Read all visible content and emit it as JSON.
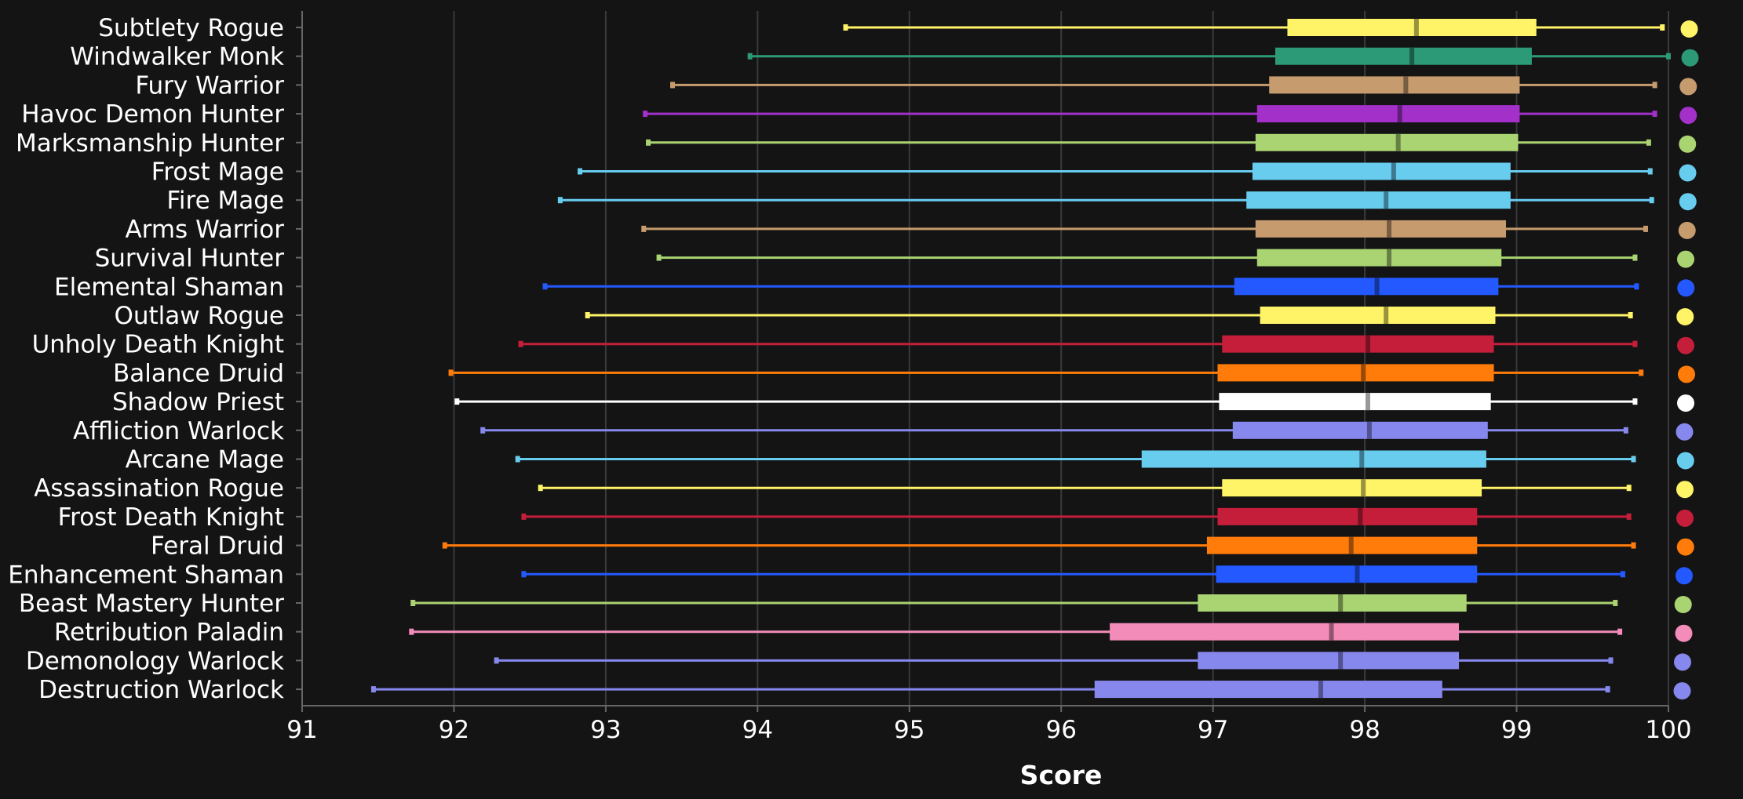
{
  "chart_data": {
    "type": "boxplot",
    "title": "",
    "xlabel": "Score",
    "ylabel": "",
    "xlim": [
      91,
      100
    ],
    "xticks": [
      91,
      92,
      93,
      94,
      95,
      96,
      97,
      98,
      99,
      100
    ],
    "grid": "vertical",
    "legend": "none",
    "series": [
      {
        "name": "Subtlety Rogue",
        "color": "#fff468",
        "min": 94.58,
        "q1": 97.49,
        "median": 98.34,
        "q3": 99.13,
        "max": 99.96
      },
      {
        "name": "Windwalker Monk",
        "color": "#2c9a76",
        "min": 93.95,
        "q1": 97.41,
        "median": 98.31,
        "q3": 99.1,
        "max": 100.0
      },
      {
        "name": "Fury Warrior",
        "color": "#c69b6d",
        "min": 93.44,
        "q1": 97.37,
        "median": 98.27,
        "q3": 99.02,
        "max": 99.91
      },
      {
        "name": "Havoc Demon Hunter",
        "color": "#a330c9",
        "min": 93.26,
        "q1": 97.29,
        "median": 98.23,
        "q3": 99.02,
        "max": 99.91
      },
      {
        "name": "Marksmanship Hunter",
        "color": "#aad372",
        "min": 93.28,
        "q1": 97.28,
        "median": 98.22,
        "q3": 99.01,
        "max": 99.87
      },
      {
        "name": "Frost Mage",
        "color": "#68ccef",
        "min": 92.83,
        "q1": 97.26,
        "median": 98.19,
        "q3": 98.96,
        "max": 99.88
      },
      {
        "name": "Fire Mage",
        "color": "#68ccef",
        "min": 92.7,
        "q1": 97.22,
        "median": 98.14,
        "q3": 98.96,
        "max": 99.89
      },
      {
        "name": "Arms Warrior",
        "color": "#c69b6d",
        "min": 93.25,
        "q1": 97.28,
        "median": 98.16,
        "q3": 98.93,
        "max": 99.85
      },
      {
        "name": "Survival Hunter",
        "color": "#aad372",
        "min": 93.35,
        "q1": 97.29,
        "median": 98.16,
        "q3": 98.9,
        "max": 99.78
      },
      {
        "name": "Elemental Shaman",
        "color": "#2359ff",
        "min": 92.6,
        "q1": 97.14,
        "median": 98.08,
        "q3": 98.88,
        "max": 99.79
      },
      {
        "name": "Outlaw Rogue",
        "color": "#fff468",
        "min": 92.88,
        "q1": 97.31,
        "median": 98.14,
        "q3": 98.86,
        "max": 99.75
      },
      {
        "name": "Unholy Death Knight",
        "color": "#c41e3b",
        "min": 92.44,
        "q1": 97.06,
        "median": 98.02,
        "q3": 98.85,
        "max": 99.78
      },
      {
        "name": "Balance Druid",
        "color": "#ff7c0a",
        "min": 91.98,
        "q1": 97.03,
        "median": 97.99,
        "q3": 98.85,
        "max": 99.82
      },
      {
        "name": "Shadow Priest",
        "color": "#ffffff",
        "min": 92.02,
        "q1": 97.04,
        "median": 98.02,
        "q3": 98.83,
        "max": 99.78
      },
      {
        "name": "Affliction Warlock",
        "color": "#8788ee",
        "min": 92.19,
        "q1": 97.13,
        "median": 98.03,
        "q3": 98.81,
        "max": 99.72
      },
      {
        "name": "Arcane Mage",
        "color": "#68ccef",
        "min": 92.42,
        "q1": 96.53,
        "median": 97.98,
        "q3": 98.8,
        "max": 99.77
      },
      {
        "name": "Assassination Rogue",
        "color": "#fff468",
        "min": 92.57,
        "q1": 97.06,
        "median": 97.99,
        "q3": 98.77,
        "max": 99.74
      },
      {
        "name": "Frost Death Knight",
        "color": "#c41e3b",
        "min": 92.46,
        "q1": 97.03,
        "median": 97.97,
        "q3": 98.74,
        "max": 99.74
      },
      {
        "name": "Feral Druid",
        "color": "#ff7c0a",
        "min": 91.94,
        "q1": 96.96,
        "median": 97.91,
        "q3": 98.74,
        "max": 99.77
      },
      {
        "name": "Enhancement Shaman",
        "color": "#2359ff",
        "min": 92.46,
        "q1": 97.02,
        "median": 97.95,
        "q3": 98.74,
        "max": 99.7
      },
      {
        "name": "Beast Mastery Hunter",
        "color": "#aad372",
        "min": 91.73,
        "q1": 96.9,
        "median": 97.84,
        "q3": 98.67,
        "max": 99.65
      },
      {
        "name": "Retribution Paladin",
        "color": "#f48cba",
        "min": 91.72,
        "q1": 96.32,
        "median": 97.78,
        "q3": 98.62,
        "max": 99.68
      },
      {
        "name": "Demonology Warlock",
        "color": "#8788ee",
        "min": 92.28,
        "q1": 96.9,
        "median": 97.84,
        "q3": 98.62,
        "max": 99.62
      },
      {
        "name": "Destruction Warlock",
        "color": "#8788ee",
        "min": 91.47,
        "q1": 96.22,
        "median": 97.71,
        "q3": 98.51,
        "max": 99.6
      }
    ]
  }
}
